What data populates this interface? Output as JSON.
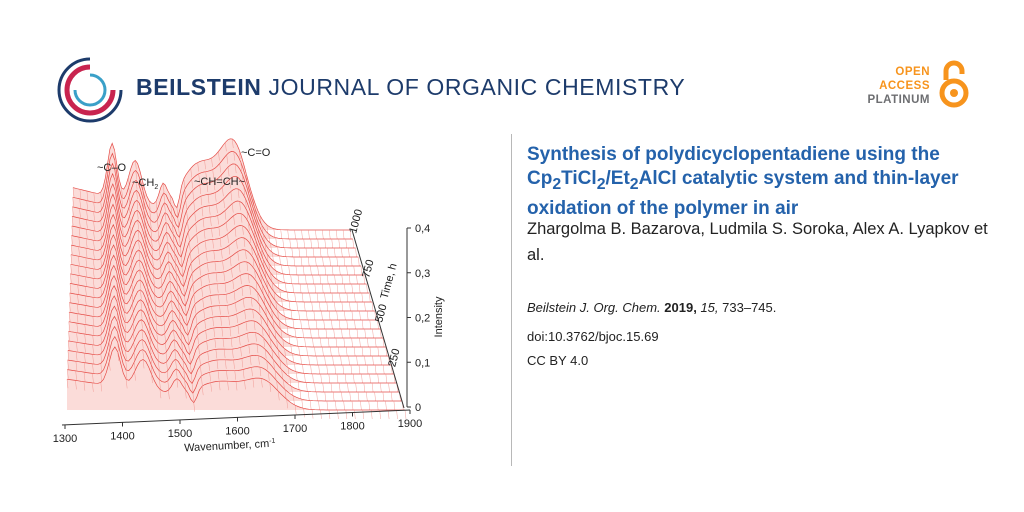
{
  "header": {
    "journal_bold": "BEILSTEIN",
    "journal_rest": " JOURNAL OF ORGANIC CHEMISTRY",
    "open_access": [
      "OPEN",
      "ACCESS",
      "PLATINUM"
    ],
    "colors": {
      "journal": "#1d3b6b",
      "oa_orange": "#f7941d",
      "oa_gray": "#6d6e71"
    }
  },
  "article": {
    "title_parts": [
      "Synthesis of polydicyclopentadiene using the Cp",
      "2",
      "TiCl",
      "2",
      "/Et",
      "2",
      "AlCl catalytic system and thin-layer oxidation of the polymer in air"
    ],
    "authors": "Zhargolma B. Bazarova, Ludmila S. Soroka, Alex A. Lyapkov et al.",
    "citation": {
      "journal": "Beilstein J. Org. Chem.",
      "year": "2019,",
      "volume": "15,",
      "pages": "733–745."
    },
    "doi": "doi:10.3762/bjoc.15.69",
    "license": "CC BY 4.0",
    "title_color": "#2462ab"
  },
  "figure": {
    "annotations": [
      "~C–O",
      "~CH",
      "2",
      "~CH=CH~",
      "~C=O"
    ],
    "x_ticks": [
      "1300",
      "1400",
      "1500",
      "1600",
      "1700",
      "1800",
      "1900"
    ],
    "x_label": "Wavenumber, cm",
    "x_label_sup": "-1",
    "y_ticks": [
      "0",
      "0,1",
      "0,2",
      "0,3",
      "0,4"
    ],
    "y_label": "Intensity",
    "z_ticks": [
      "250",
      "500",
      "750",
      "1000"
    ],
    "z_label": "Time, h",
    "line_color": "#e0302a"
  }
}
